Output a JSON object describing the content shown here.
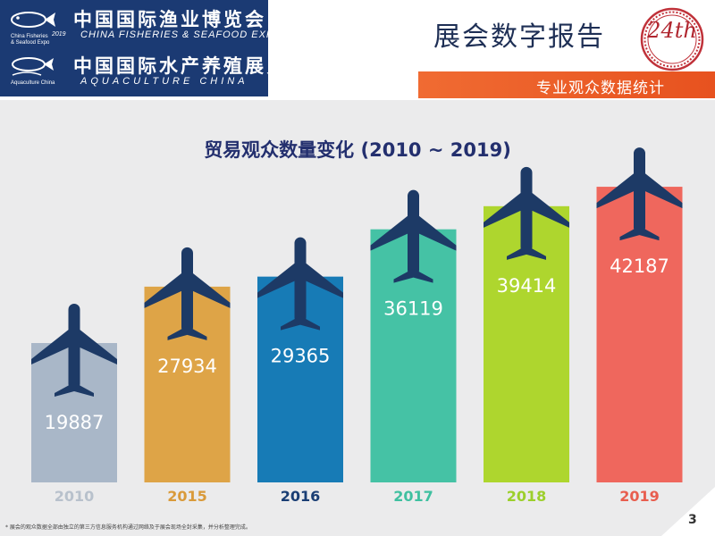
{
  "header": {
    "logo1_cn": "中国国际渔业博览会",
    "logo1_en": "CHINA FISHERIES & SEAFOOD EXPO",
    "logo1_sub_lines": [
      "China Fisheries",
      "& Seafood Expo"
    ],
    "logo2_cn": "中国国际水产养殖展览会",
    "logo2_en": "AQUACULTURE CHINA",
    "logo2_sub_lines": [
      "Aquaculture China"
    ],
    "logo_year": "2019",
    "report_title": "展会数字报告",
    "badge_number": "24th",
    "section_label": "专业观众数据统计"
  },
  "chart_data": {
    "type": "bar",
    "title": "贸易观众数量变化 (2010 ~ 2019)",
    "categories": [
      "2010",
      "2015",
      "2016",
      "2017",
      "2018",
      "2019"
    ],
    "values": [
      19887,
      27934,
      29365,
      36119,
      39414,
      42187
    ],
    "colors": [
      "#a9b7c8",
      "#dea447",
      "#177bb6",
      "#45c2a5",
      "#aed62e",
      "#ef675d"
    ],
    "category_label_colors": [
      "#b8c1cc",
      "#d99a3a",
      "#1a3e74",
      "#3fc0a0",
      "#9ccf2c",
      "#e85d4e"
    ],
    "ylim": [
      0,
      45000
    ],
    "grid": false,
    "legend": "none",
    "xlabel": "",
    "ylabel": ""
  },
  "footer": {
    "footnote": "* 展会的观众数据全部由独立的第三方信息服务机构通过网络及于展会现场全封采集，并分析整理完成。",
    "page_number": "3"
  }
}
